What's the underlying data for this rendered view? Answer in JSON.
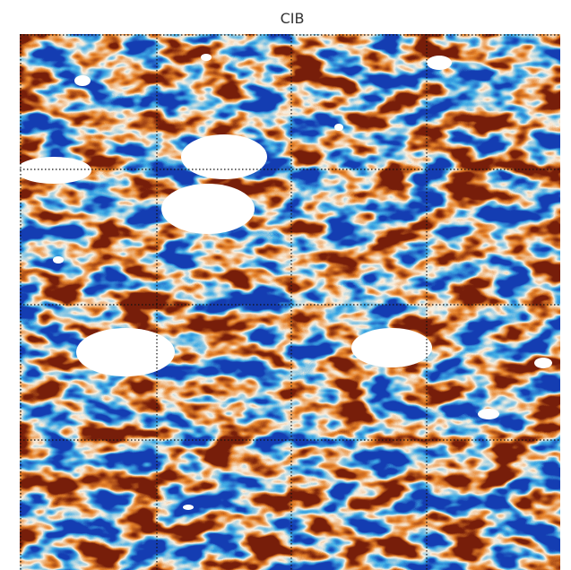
{
  "title": "CIB"
}
